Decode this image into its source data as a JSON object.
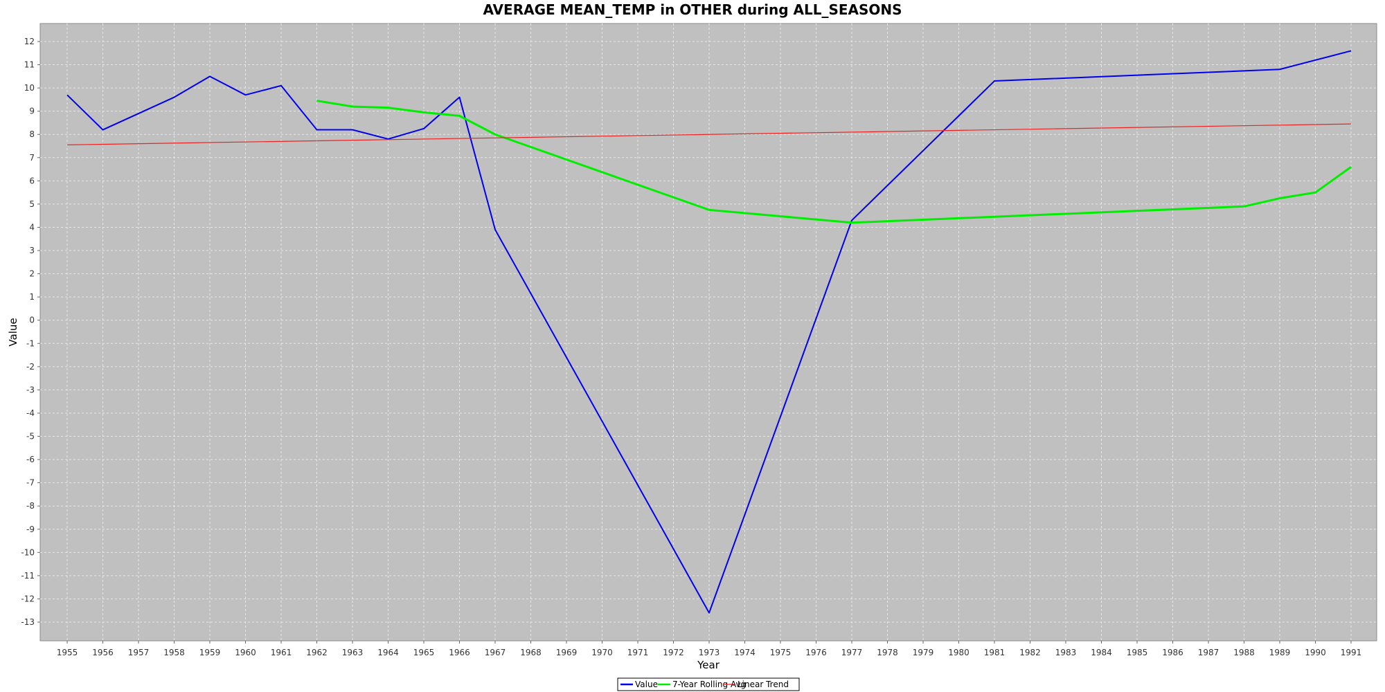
{
  "chart_data": {
    "type": "line",
    "title": "AVERAGE MEAN_TEMP in OTHER during ALL_SEASONS",
    "xlabel": "Year",
    "ylabel": "Value",
    "xlim": [
      1955,
      1991
    ],
    "ylim": [
      -13,
      12
    ],
    "x_ticks": [
      1955,
      1956,
      1957,
      1958,
      1959,
      1960,
      1961,
      1962,
      1963,
      1964,
      1965,
      1966,
      1967,
      1968,
      1969,
      1970,
      1971,
      1972,
      1973,
      1974,
      1975,
      1976,
      1977,
      1978,
      1979,
      1980,
      1981,
      1982,
      1983,
      1984,
      1985,
      1986,
      1987,
      1988,
      1989,
      1990,
      1991
    ],
    "y_ticks": [
      12,
      11,
      10,
      9,
      8,
      7,
      6,
      5,
      4,
      3,
      2,
      1,
      0,
      -1,
      -2,
      -3,
      -4,
      -5,
      -6,
      -7,
      -8,
      -9,
      -10,
      -11,
      -12,
      -13
    ],
    "grid": true,
    "legend_position": "bottom-center",
    "colors": {
      "plot_background": "#c0c0c0",
      "grid": "#e8e8e8",
      "value": "#0000ee",
      "rolling": "#00ee00",
      "trend": "#ee2222"
    },
    "series": [
      {
        "name": "Value",
        "points": [
          [
            1955,
            9.7
          ],
          [
            1956,
            8.2
          ],
          [
            1958,
            9.6
          ],
          [
            1959,
            10.5
          ],
          [
            1960,
            9.7
          ],
          [
            1961,
            10.1
          ],
          [
            1962,
            8.2
          ],
          [
            1963,
            8.2
          ],
          [
            1964,
            7.8
          ],
          [
            1965,
            8.25
          ],
          [
            1966,
            9.6
          ],
          [
            1967,
            3.9
          ],
          [
            1973,
            -12.6
          ],
          [
            1977,
            4.3
          ],
          [
            1981,
            10.3
          ],
          [
            1989,
            10.8
          ],
          [
            1991,
            11.6
          ]
        ]
      },
      {
        "name": "7-Year Rolling Avg",
        "points": [
          [
            1962,
            9.45
          ],
          [
            1963,
            9.2
          ],
          [
            1964,
            9.15
          ],
          [
            1965,
            8.95
          ],
          [
            1966,
            8.8
          ],
          [
            1967,
            8.0
          ],
          [
            1973,
            4.75
          ],
          [
            1977,
            4.2
          ],
          [
            1988,
            4.9
          ],
          [
            1989,
            5.25
          ],
          [
            1990,
            5.5
          ],
          [
            1991,
            6.6
          ]
        ]
      },
      {
        "name": "Linear Trend",
        "points": [
          [
            1955,
            7.55
          ],
          [
            1991,
            8.45
          ]
        ]
      }
    ]
  }
}
